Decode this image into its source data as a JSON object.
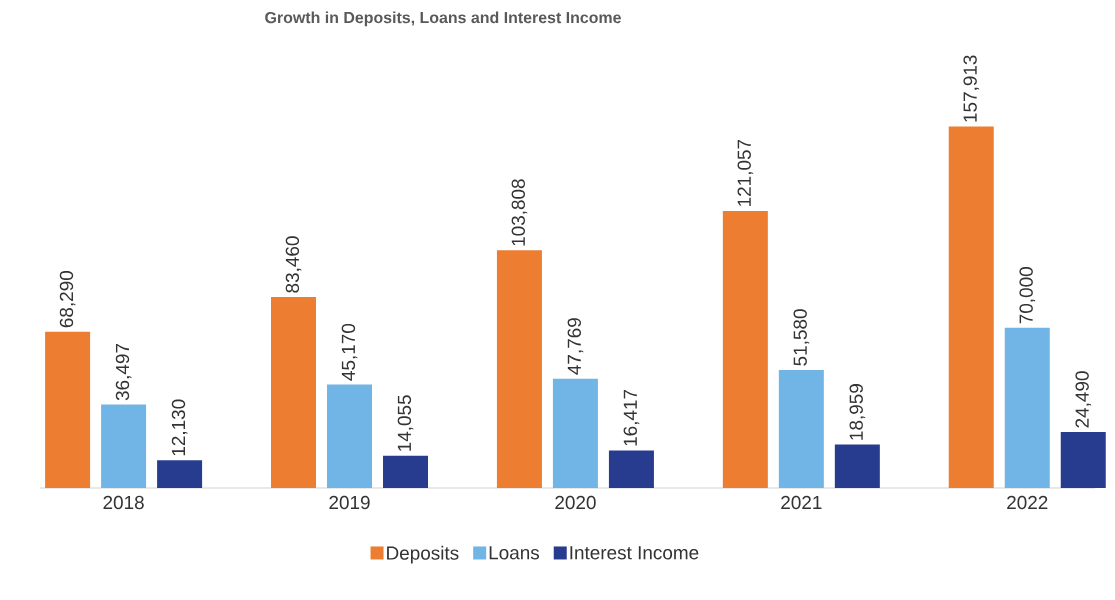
{
  "chart_data": {
    "type": "bar",
    "title": "Growth in Deposits, Loans and Interest Income",
    "categories": [
      "2018",
      "2019",
      "2020",
      "2021",
      "2022"
    ],
    "series": [
      {
        "name": "Deposits",
        "color": "#ed7d31",
        "values": [
          68290,
          83460,
          103808,
          121057,
          157913
        ],
        "value_labels": [
          "68,290",
          "83,460",
          "103,808",
          "121,057",
          "157,913"
        ]
      },
      {
        "name": "Loans",
        "color": "#71b5e6",
        "values": [
          36497,
          45170,
          47769,
          51580,
          70000
        ],
        "value_labels": [
          "36,497",
          "45,170",
          "47,769",
          "51,580",
          "70,000"
        ]
      },
      {
        "name": "Interest Income",
        "color": "#283c8f",
        "values": [
          12130,
          14055,
          16417,
          18959,
          24490
        ],
        "value_labels": [
          "12,130",
          "14,055",
          "16,417",
          "18,959",
          "24,490"
        ]
      }
    ],
    "legend": "bottom"
  }
}
